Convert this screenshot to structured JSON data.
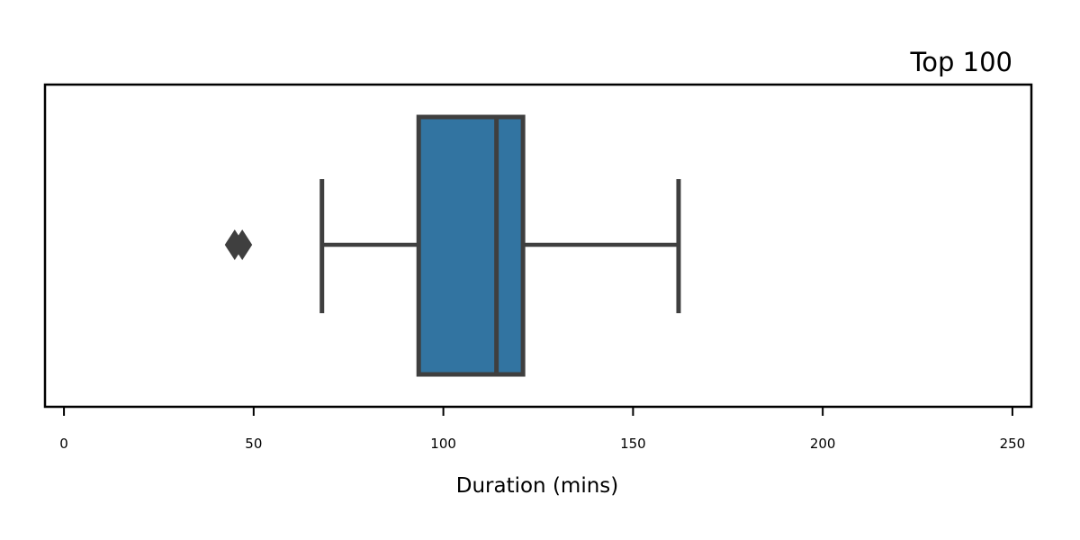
{
  "chart_data": {
    "type": "box",
    "orientation": "horizontal",
    "title": "Top 100",
    "xlabel": "Duration (mins)",
    "ylabel": "",
    "xlim": [
      -5,
      255
    ],
    "xticks": [
      0,
      50,
      100,
      150,
      200,
      250
    ],
    "xtick_labels": [
      "0",
      "50",
      "100",
      "150",
      "200",
      "250"
    ],
    "grid": false,
    "box": {
      "whisker_low": 68,
      "q1": 93.5,
      "median": 114,
      "q3": 121,
      "whisker_high": 162,
      "outliers": [
        45,
        47
      ]
    },
    "colors": {
      "box_fill": "#3274a1",
      "lines": "#3f3f3f",
      "axes": "#000000"
    }
  }
}
